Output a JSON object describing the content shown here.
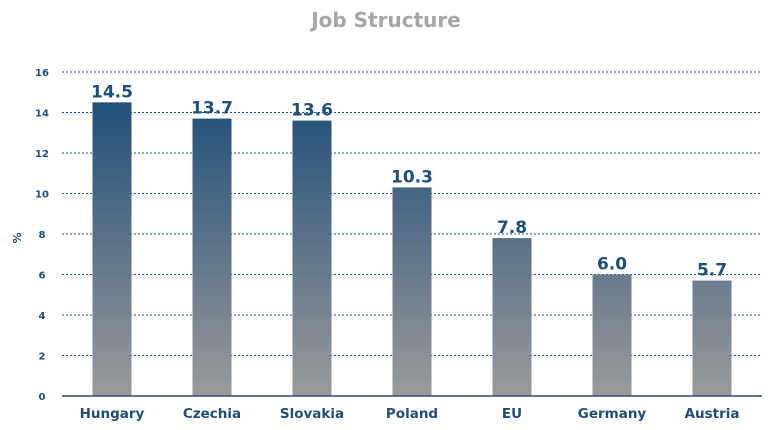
{
  "chart_data": {
    "type": "bar",
    "title": "Job Structure",
    "ylabel": "%",
    "xlabel": "",
    "ylim": [
      0,
      16
    ],
    "yticks": [
      0,
      2,
      4,
      6,
      8,
      10,
      12,
      14,
      16
    ],
    "grid": true,
    "categories": [
      "Hungary",
      "Czechia",
      "Slovakia",
      "Poland",
      "EU",
      "Germany",
      "Austria"
    ],
    "values": [
      14.5,
      13.7,
      13.6,
      10.3,
      7.8,
      6.0,
      5.7
    ],
    "data_labels": [
      "14.5",
      "13.7",
      "13.6",
      "10.3",
      "7.8",
      "6.0",
      "5.7"
    ],
    "colors": {
      "bar_top": "#1f4e79",
      "bar_bottom": "#9a9a9a",
      "text": "#1f4e79",
      "title": "#a6a6a6"
    }
  }
}
